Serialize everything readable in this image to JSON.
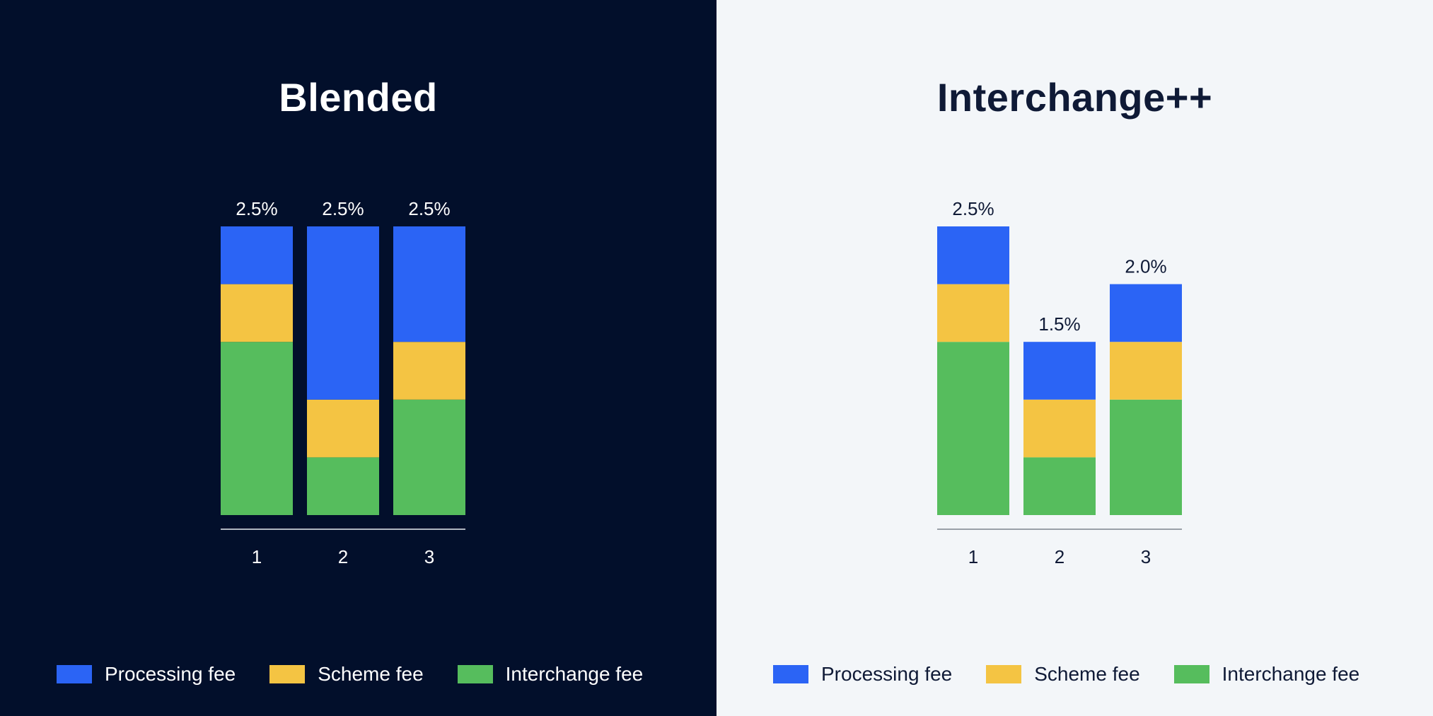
{
  "colors": {
    "processing": "#2b64f5",
    "scheme": "#f4c443",
    "interchange": "#56bd5d"
  },
  "chart_data": [
    {
      "type": "bar",
      "stacked": true,
      "title": "Blended",
      "categories": [
        "1",
        "2",
        "3"
      ],
      "series": [
        {
          "name": "Interchange fee",
          "key": "interchange",
          "values": [
            1.5,
            0.5,
            1.0
          ]
        },
        {
          "name": "Scheme fee",
          "key": "scheme",
          "values": [
            0.5,
            0.5,
            0.5
          ]
        },
        {
          "name": "Processing fee",
          "key": "processing",
          "values": [
            0.5,
            1.5,
            1.0
          ]
        }
      ],
      "bar_labels": [
        "2.5%",
        "2.5%",
        "2.5%"
      ],
      "xlabel": "",
      "ylabel": "",
      "ylim": [
        0,
        2.5
      ],
      "legend": [
        "Processing fee",
        "Scheme fee",
        "Interchange fee"
      ],
      "legend_position": "bottom"
    },
    {
      "type": "bar",
      "stacked": true,
      "title": "Interchange++",
      "categories": [
        "1",
        "2",
        "3"
      ],
      "series": [
        {
          "name": "Interchange fee",
          "key": "interchange",
          "values": [
            1.5,
            0.5,
            1.0
          ]
        },
        {
          "name": "Scheme fee",
          "key": "scheme",
          "values": [
            0.5,
            0.5,
            0.5
          ]
        },
        {
          "name": "Processing fee",
          "key": "processing",
          "values": [
            0.5,
            0.5,
            0.5
          ]
        }
      ],
      "bar_labels": [
        "2.5%",
        "1.5%",
        "2.0%"
      ],
      "xlabel": "",
      "ylabel": "",
      "ylim": [
        0,
        2.5
      ],
      "legend": [
        "Processing fee",
        "Scheme fee",
        "Interchange fee"
      ],
      "legend_position": "bottom"
    }
  ]
}
